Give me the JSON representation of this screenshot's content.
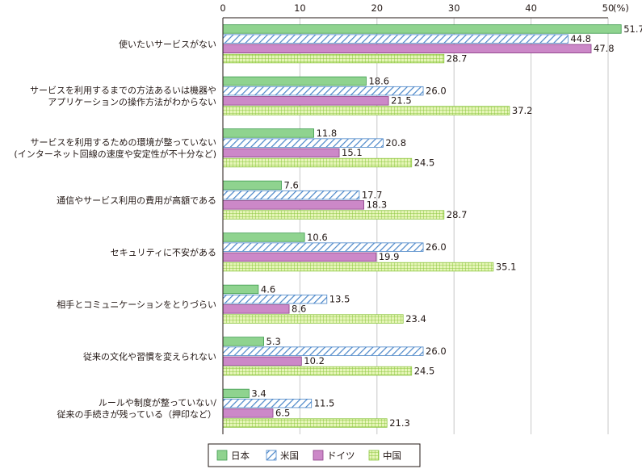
{
  "chart_data": {
    "type": "bar",
    "orientation": "horizontal",
    "xlim": [
      0,
      50
    ],
    "x_ticks": [
      "0",
      "10",
      "20",
      "30",
      "40",
      "50"
    ],
    "unit_label": "(%)",
    "grid": true,
    "legend_position": "bottom",
    "categories": [
      [
        "使いたいサービスがない"
      ],
      [
        "サービスを利用するまでの方法あるいは機器や",
        "アプリケーションの操作方法がわからない"
      ],
      [
        "サービスを利用するための環境が整っていない",
        "(インターネット回線の速度や安定性が不十分など)"
      ],
      [
        "通信やサービス利用の費用が高額である"
      ],
      [
        "セキュリティに不安がある"
      ],
      [
        "相手とコミュニケーションをとりづらい"
      ],
      [
        "従来の文化や習慣を変えられない"
      ],
      [
        "ルールや制度が整っていない/",
        "従来の手続きが残っている（押印など）"
      ]
    ],
    "series": [
      {
        "name": "日本",
        "values": [
          "51.7",
          "18.6",
          "11.8",
          "7.6",
          "10.6",
          "4.6",
          "5.3",
          "3.4"
        ]
      },
      {
        "name": "米国",
        "values": [
          "44.8",
          "26.0",
          "20.8",
          "17.7",
          "26.0",
          "13.5",
          "26.0",
          "11.5"
        ]
      },
      {
        "name": "ドイツ",
        "values": [
          "47.8",
          "21.5",
          "15.1",
          "18.3",
          "19.9",
          "8.6",
          "10.2",
          "6.5"
        ]
      },
      {
        "name": "中国",
        "values": [
          "28.7",
          "37.2",
          "24.5",
          "28.7",
          "35.1",
          "23.4",
          "24.5",
          "21.3"
        ]
      }
    ]
  },
  "colors": {
    "japan_fill": "#8fd38f",
    "japan_stroke": "#3f9b4f",
    "usa_fill": "#ffffff",
    "usa_hatch": "#4a86c8",
    "germany_fill": "#cc88c8",
    "germany_stroke": "#8a3f86",
    "china_fill": "#d9ef9a",
    "china_grid": "#8cc63f",
    "grid_line": "#c8c8c8",
    "axis_line": "#231815"
  }
}
